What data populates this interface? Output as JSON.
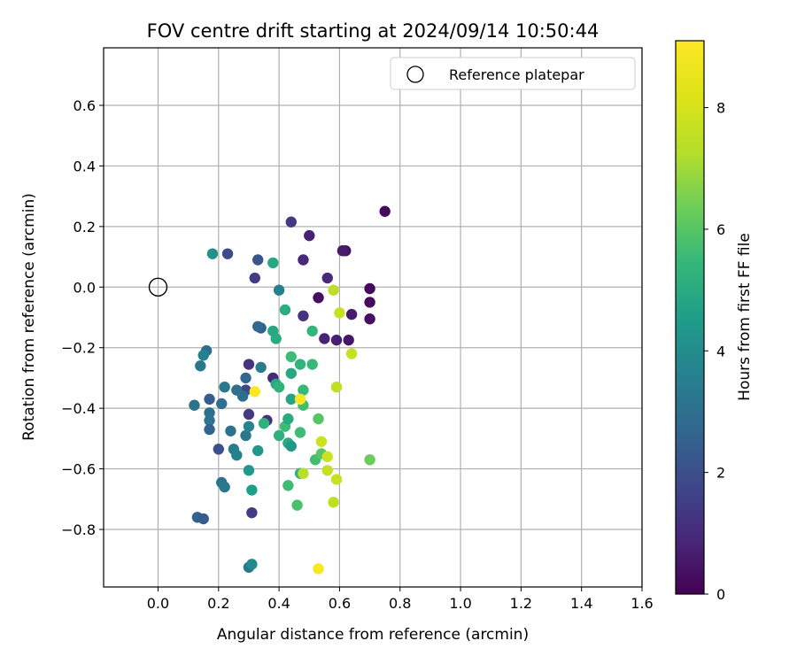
{
  "chart_data": {
    "type": "scatter",
    "title": "FOV centre drift starting at 2024/09/14 10:50:44",
    "xlabel": "Angular distance from reference (arcmin)",
    "ylabel": "Rotation from reference (arcmin)",
    "xlim": [
      -0.18,
      1.6
    ],
    "ylim": [
      -0.99,
      0.79
    ],
    "xticks": [
      0.0,
      0.2,
      0.4,
      0.6,
      0.8,
      1.0,
      1.2,
      1.4,
      1.6
    ],
    "xtick_labels": [
      "0.0",
      "0.2",
      "0.4",
      "0.6",
      "0.8",
      "1.0",
      "1.2",
      "1.4",
      "1.6"
    ],
    "yticks": [
      0.6,
      0.4,
      0.2,
      0.0,
      -0.2,
      -0.4,
      -0.6,
      -0.8
    ],
    "ytick_labels": [
      "0.6",
      "0.4",
      "0.2",
      "0.0",
      "−0.2",
      "−0.4",
      "−0.6",
      "−0.8"
    ],
    "grid": true,
    "legend": {
      "placement": "top-right",
      "entries": [
        {
          "label": "Reference platepar",
          "marker": "open-circle"
        }
      ]
    },
    "reference_point": {
      "x": 0.0,
      "y": 0.0
    },
    "colorbar": {
      "label": "Hours from first FF file",
      "colormap": "viridis",
      "range": [
        0,
        9.1
      ],
      "ticks": [
        0,
        2,
        4,
        6,
        8
      ],
      "tick_labels": [
        "0",
        "2",
        "4",
        "6",
        "8"
      ]
    },
    "points": [
      {
        "x": 0.75,
        "y": 0.25,
        "c": 0.2
      },
      {
        "x": 0.7,
        "y": -0.005,
        "c": 0.2
      },
      {
        "x": 0.7,
        "y": -0.05,
        "c": 0.2
      },
      {
        "x": 0.7,
        "y": -0.105,
        "c": 0.3
      },
      {
        "x": 0.62,
        "y": 0.12,
        "c": 0.4
      },
      {
        "x": 0.61,
        "y": 0.12,
        "c": 0.6
      },
      {
        "x": 0.64,
        "y": -0.09,
        "c": 0.6
      },
      {
        "x": 0.63,
        "y": -0.175,
        "c": 0.5
      },
      {
        "x": 0.59,
        "y": -0.175,
        "c": 0.7
      },
      {
        "x": 0.55,
        "y": -0.17,
        "c": 0.8
      },
      {
        "x": 0.56,
        "y": 0.03,
        "c": 1.0
      },
      {
        "x": 0.53,
        "y": -0.035,
        "c": 0.3
      },
      {
        "x": 0.5,
        "y": 0.17,
        "c": 0.8
      },
      {
        "x": 0.48,
        "y": 0.09,
        "c": 0.9
      },
      {
        "x": 0.48,
        "y": -0.095,
        "c": 1.2
      },
      {
        "x": 0.44,
        "y": 0.215,
        "c": 1.4
      },
      {
        "x": 0.38,
        "y": -0.3,
        "c": 1.0
      },
      {
        "x": 0.36,
        "y": -0.44,
        "c": 1.2
      },
      {
        "x": 0.3,
        "y": -0.255,
        "c": 1.2
      },
      {
        "x": 0.3,
        "y": -0.42,
        "c": 1.4
      },
      {
        "x": 0.29,
        "y": -0.34,
        "c": 1.7
      },
      {
        "x": 0.31,
        "y": -0.745,
        "c": 1.5
      },
      {
        "x": 0.32,
        "y": 0.03,
        "c": 1.5
      },
      {
        "x": 0.33,
        "y": 0.09,
        "c": 2.2
      },
      {
        "x": 0.23,
        "y": 0.11,
        "c": 1.9
      },
      {
        "x": 0.34,
        "y": -0.135,
        "c": 2.4
      },
      {
        "x": 0.33,
        "y": -0.13,
        "c": 2.8
      },
      {
        "x": 0.34,
        "y": -0.265,
        "c": 3.4
      },
      {
        "x": 0.29,
        "y": -0.3,
        "c": 2.7
      },
      {
        "x": 0.28,
        "y": -0.36,
        "c": 2.9
      },
      {
        "x": 0.24,
        "y": -0.475,
        "c": 3.1
      },
      {
        "x": 0.26,
        "y": -0.34,
        "c": 3.0
      },
      {
        "x": 0.22,
        "y": -0.33,
        "c": 3.3
      },
      {
        "x": 0.21,
        "y": -0.385,
        "c": 3.0
      },
      {
        "x": 0.2,
        "y": -0.535,
        "c": 2.0
      },
      {
        "x": 0.17,
        "y": -0.37,
        "c": 2.4
      },
      {
        "x": 0.17,
        "y": -0.415,
        "c": 3.0
      },
      {
        "x": 0.17,
        "y": -0.44,
        "c": 3.2
      },
      {
        "x": 0.17,
        "y": -0.47,
        "c": 2.6
      },
      {
        "x": 0.16,
        "y": -0.21,
        "c": 2.9
      },
      {
        "x": 0.15,
        "y": -0.225,
        "c": 3.6
      },
      {
        "x": 0.14,
        "y": -0.26,
        "c": 3.3
      },
      {
        "x": 0.12,
        "y": -0.39,
        "c": 3.1
      },
      {
        "x": 0.13,
        "y": -0.76,
        "c": 2.6
      },
      {
        "x": 0.15,
        "y": -0.765,
        "c": 2.4
      },
      {
        "x": 0.21,
        "y": -0.645,
        "c": 3.1
      },
      {
        "x": 0.22,
        "y": -0.66,
        "c": 3.3
      },
      {
        "x": 0.25,
        "y": -0.535,
        "c": 3.4
      },
      {
        "x": 0.26,
        "y": -0.555,
        "c": 3.6
      },
      {
        "x": 0.29,
        "y": -0.49,
        "c": 3.3
      },
      {
        "x": 0.3,
        "y": -0.46,
        "c": 3.7
      },
      {
        "x": 0.3,
        "y": -0.605,
        "c": 4.4
      },
      {
        "x": 0.31,
        "y": -0.67,
        "c": 4.6
      },
      {
        "x": 0.33,
        "y": -0.54,
        "c": 4.4
      },
      {
        "x": 0.3,
        "y": -0.925,
        "c": 3.2
      },
      {
        "x": 0.31,
        "y": -0.915,
        "c": 3.9
      },
      {
        "x": 0.18,
        "y": 0.11,
        "c": 4.1
      },
      {
        "x": 0.4,
        "y": -0.01,
        "c": 3.6
      },
      {
        "x": 0.38,
        "y": 0.08,
        "c": 4.9
      },
      {
        "x": 0.42,
        "y": -0.075,
        "c": 5.1
      },
      {
        "x": 0.38,
        "y": -0.145,
        "c": 4.9
      },
      {
        "x": 0.39,
        "y": -0.17,
        "c": 5.0
      },
      {
        "x": 0.39,
        "y": -0.32,
        "c": 4.9
      },
      {
        "x": 0.4,
        "y": -0.33,
        "c": 5.3
      },
      {
        "x": 0.35,
        "y": -0.45,
        "c": 5.2
      },
      {
        "x": 0.4,
        "y": -0.49,
        "c": 5.2
      },
      {
        "x": 0.42,
        "y": -0.46,
        "c": 5.6
      },
      {
        "x": 0.43,
        "y": -0.515,
        "c": 5.0
      },
      {
        "x": 0.44,
        "y": -0.525,
        "c": 4.4
      },
      {
        "x": 0.43,
        "y": -0.435,
        "c": 5.0
      },
      {
        "x": 0.44,
        "y": -0.285,
        "c": 4.9
      },
      {
        "x": 0.44,
        "y": -0.23,
        "c": 5.6
      },
      {
        "x": 0.44,
        "y": -0.37,
        "c": 4.8
      },
      {
        "x": 0.47,
        "y": -0.255,
        "c": 5.3
      },
      {
        "x": 0.51,
        "y": -0.145,
        "c": 5.4
      },
      {
        "x": 0.51,
        "y": -0.255,
        "c": 5.5
      },
      {
        "x": 0.48,
        "y": -0.34,
        "c": 5.5
      },
      {
        "x": 0.48,
        "y": -0.39,
        "c": 5.7
      },
      {
        "x": 0.47,
        "y": -0.48,
        "c": 5.6
      },
      {
        "x": 0.43,
        "y": -0.655,
        "c": 5.6
      },
      {
        "x": 0.46,
        "y": -0.72,
        "c": 5.8
      },
      {
        "x": 0.47,
        "y": -0.615,
        "c": 5.3
      },
      {
        "x": 0.52,
        "y": -0.57,
        "c": 5.7
      },
      {
        "x": 0.53,
        "y": -0.435,
        "c": 6.0
      },
      {
        "x": 0.54,
        "y": -0.55,
        "c": 6.0
      },
      {
        "x": 0.7,
        "y": -0.57,
        "c": 6.3
      },
      {
        "x": 0.58,
        "y": -0.01,
        "c": 7.5
      },
      {
        "x": 0.6,
        "y": -0.085,
        "c": 7.7
      },
      {
        "x": 0.64,
        "y": -0.22,
        "c": 7.7
      },
      {
        "x": 0.59,
        "y": -0.33,
        "c": 7.5
      },
      {
        "x": 0.48,
        "y": -0.615,
        "c": 7.4
      },
      {
        "x": 0.54,
        "y": -0.51,
        "c": 7.8
      },
      {
        "x": 0.56,
        "y": -0.56,
        "c": 7.8
      },
      {
        "x": 0.56,
        "y": -0.605,
        "c": 7.6
      },
      {
        "x": 0.59,
        "y": -0.635,
        "c": 7.7
      },
      {
        "x": 0.58,
        "y": -0.71,
        "c": 7.5
      },
      {
        "x": 0.47,
        "y": -0.37,
        "c": 9.0
      },
      {
        "x": 0.32,
        "y": -0.345,
        "c": 9.0
      },
      {
        "x": 0.53,
        "y": -0.93,
        "c": 9.0
      }
    ]
  }
}
